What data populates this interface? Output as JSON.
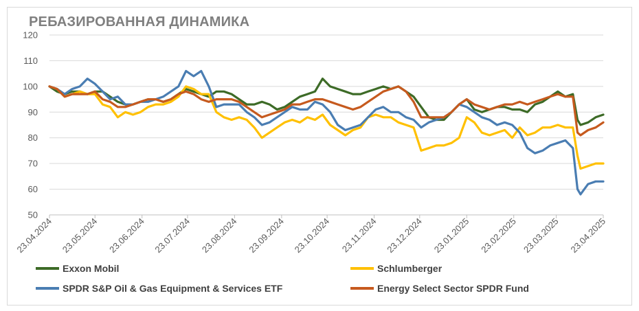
{
  "chart_data": {
    "type": "line",
    "title": "РЕБАЗИРОВАННАЯ ДИНАМИКА",
    "xlabel": "",
    "ylabel": "",
    "ylim": [
      50,
      120
    ],
    "y_ticks": [
      50,
      60,
      70,
      80,
      90,
      100,
      110,
      120
    ],
    "x_range": [
      0,
      365
    ],
    "x_ticks": [
      {
        "label": "23.04.2024",
        "x": 0
      },
      {
        "label": "23.05.2024",
        "x": 30
      },
      {
        "label": "23.06.2024",
        "x": 61
      },
      {
        "label": "23.07.2024",
        "x": 91
      },
      {
        "label": "23.08.2024",
        "x": 122
      },
      {
        "label": "23.09.2024",
        "x": 153
      },
      {
        "label": "23.10.2024",
        "x": 183
      },
      {
        "label": "23.11.2024",
        "x": 214
      },
      {
        "label": "23.12.2024",
        "x": 244
      },
      {
        "label": "23.01.2025",
        "x": 275
      },
      {
        "label": "23.02.2025",
        "x": 306
      },
      {
        "label": "23.03.2025",
        "x": 334
      },
      {
        "label": "23.04.2025",
        "x": 365
      }
    ],
    "grid": true,
    "legend_position": "bottom",
    "series": [
      {
        "name": "Exxon Mobil",
        "color": "#3d6b27",
        "x": [
          0,
          5,
          10,
          15,
          20,
          25,
          30,
          35,
          40,
          45,
          50,
          55,
          60,
          65,
          70,
          75,
          80,
          85,
          90,
          95,
          100,
          105,
          110,
          115,
          120,
          125,
          130,
          135,
          140,
          145,
          150,
          155,
          160,
          165,
          170,
          175,
          180,
          185,
          190,
          195,
          200,
          205,
          210,
          215,
          220,
          225,
          230,
          235,
          240,
          245,
          250,
          255,
          260,
          265,
          270,
          275,
          280,
          285,
          290,
          295,
          300,
          305,
          310,
          315,
          320,
          325,
          330,
          335,
          340,
          345,
          348,
          350,
          355,
          360,
          365
        ],
        "values": [
          100,
          98,
          97,
          98,
          98,
          97,
          98,
          98,
          96,
          94,
          93,
          93,
          94,
          95,
          95,
          94,
          95,
          97,
          99,
          98,
          97,
          96,
          98,
          98,
          97,
          95,
          93,
          93,
          94,
          93,
          91,
          92,
          94,
          96,
          97,
          98,
          103,
          100,
          99,
          98,
          97,
          97,
          98,
          99,
          100,
          99,
          100,
          98,
          96,
          92,
          88,
          87,
          87,
          90,
          93,
          95,
          91,
          90,
          91,
          92,
          92,
          91,
          91,
          90,
          93,
          94,
          96,
          98,
          96,
          97,
          87,
          85,
          86,
          88,
          89
        ]
      },
      {
        "name": "Schlumberger",
        "color": "#ffc000",
        "x": [
          0,
          5,
          10,
          15,
          20,
          25,
          30,
          35,
          40,
          45,
          50,
          55,
          60,
          65,
          70,
          75,
          80,
          85,
          90,
          95,
          100,
          105,
          110,
          115,
          120,
          125,
          130,
          135,
          140,
          145,
          150,
          155,
          160,
          165,
          170,
          175,
          180,
          185,
          190,
          195,
          200,
          205,
          210,
          215,
          220,
          225,
          230,
          235,
          240,
          245,
          250,
          255,
          260,
          265,
          270,
          275,
          280,
          285,
          290,
          295,
          300,
          305,
          310,
          315,
          320,
          325,
          330,
          335,
          340,
          345,
          348,
          350,
          355,
          360,
          365
        ],
        "values": [
          100,
          99,
          96,
          97,
          98,
          97,
          97,
          93,
          92,
          88,
          90,
          89,
          90,
          92,
          93,
          93,
          94,
          96,
          100,
          99,
          97,
          97,
          90,
          88,
          87,
          88,
          87,
          84,
          80,
          82,
          84,
          86,
          87,
          86,
          88,
          87,
          89,
          85,
          83,
          81,
          83,
          84,
          88,
          89,
          88,
          88,
          86,
          85,
          84,
          75,
          76,
          77,
          77,
          78,
          80,
          88,
          86,
          82,
          81,
          82,
          83,
          80,
          84,
          81,
          82,
          84,
          84,
          85,
          84,
          84,
          73,
          68,
          69,
          70,
          70
        ]
      },
      {
        "name": "SPDR S&P Oil & Gas Equipment & Services ETF",
        "color": "#4a7db2",
        "x": [
          0,
          5,
          10,
          15,
          20,
          25,
          30,
          35,
          40,
          45,
          50,
          55,
          60,
          65,
          70,
          75,
          80,
          85,
          90,
          95,
          100,
          105,
          110,
          115,
          120,
          125,
          130,
          135,
          140,
          145,
          150,
          155,
          160,
          165,
          170,
          175,
          180,
          185,
          190,
          195,
          200,
          205,
          210,
          215,
          220,
          225,
          230,
          235,
          240,
          245,
          250,
          255,
          260,
          265,
          270,
          275,
          280,
          285,
          290,
          295,
          300,
          305,
          310,
          315,
          320,
          325,
          330,
          335,
          340,
          345,
          348,
          350,
          355,
          360,
          365
        ],
        "values": [
          100,
          99,
          97,
          99,
          100,
          103,
          101,
          98,
          95,
          96,
          93,
          93,
          94,
          94,
          95,
          96,
          98,
          100,
          106,
          104,
          106,
          100,
          92,
          93,
          93,
          93,
          90,
          88,
          85,
          86,
          88,
          90,
          92,
          91,
          91,
          94,
          93,
          90,
          85,
          83,
          84,
          85,
          88,
          91,
          92,
          90,
          90,
          88,
          87,
          84,
          86,
          87,
          88,
          90,
          93,
          92,
          90,
          88,
          87,
          85,
          86,
          85,
          82,
          76,
          74,
          75,
          77,
          78,
          79,
          76,
          60,
          58,
          62,
          63,
          63
        ]
      },
      {
        "name": "Energy Select Sector SPDR Fund",
        "color": "#c65a1e",
        "x": [
          0,
          5,
          10,
          15,
          20,
          25,
          30,
          35,
          40,
          45,
          50,
          55,
          60,
          65,
          70,
          75,
          80,
          85,
          90,
          95,
          100,
          105,
          110,
          115,
          120,
          125,
          130,
          135,
          140,
          145,
          150,
          155,
          160,
          165,
          170,
          175,
          180,
          185,
          190,
          195,
          200,
          205,
          210,
          215,
          220,
          225,
          230,
          235,
          240,
          245,
          250,
          255,
          260,
          265,
          270,
          275,
          280,
          285,
          290,
          295,
          300,
          305,
          310,
          315,
          320,
          325,
          330,
          335,
          340,
          345,
          348,
          350,
          355,
          360,
          365
        ],
        "values": [
          100,
          99,
          96,
          97,
          97,
          97,
          98,
          95,
          94,
          92,
          92,
          93,
          94,
          95,
          95,
          94,
          95,
          97,
          98,
          97,
          95,
          94,
          95,
          95,
          95,
          94,
          92,
          90,
          88,
          89,
          90,
          91,
          93,
          93,
          94,
          95,
          95,
          94,
          93,
          92,
          91,
          92,
          94,
          96,
          98,
          99,
          100,
          98,
          94,
          88,
          88,
          88,
          88,
          90,
          93,
          95,
          93,
          92,
          91,
          92,
          93,
          93,
          94,
          93,
          94,
          95,
          96,
          97,
          96,
          96,
          82,
          81,
          83,
          84,
          86
        ]
      }
    ]
  }
}
